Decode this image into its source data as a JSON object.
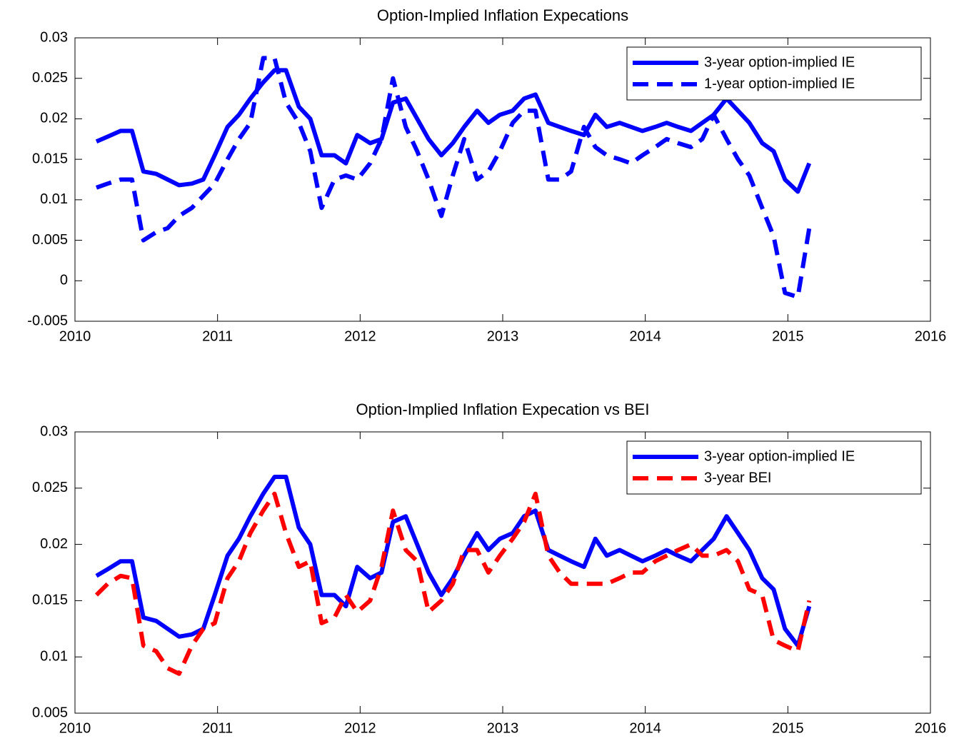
{
  "chart_data": [
    {
      "type": "line",
      "title": "Option-Implied Inflation Expecations",
      "x": [
        2010.15,
        2010.23,
        2010.32,
        2010.4,
        2010.48,
        2010.57,
        2010.65,
        2010.73,
        2010.82,
        2010.9,
        2010.98,
        2011.07,
        2011.15,
        2011.23,
        2011.32,
        2011.4,
        2011.48,
        2011.57,
        2011.65,
        2011.73,
        2011.82,
        2011.9,
        2011.98,
        2012.07,
        2012.15,
        2012.23,
        2012.32,
        2012.4,
        2012.48,
        2012.57,
        2012.65,
        2012.73,
        2012.82,
        2012.9,
        2012.98,
        2013.07,
        2013.15,
        2013.23,
        2013.32,
        2013.4,
        2013.48,
        2013.57,
        2013.65,
        2013.73,
        2013.82,
        2013.9,
        2013.98,
        2014.07,
        2014.15,
        2014.23,
        2014.32,
        2014.4,
        2014.48,
        2014.57,
        2014.65,
        2014.73,
        2014.82,
        2014.9,
        2014.98,
        2015.07,
        2015.15
      ],
      "series": [
        {
          "name": "3-year option-implied IE",
          "color": "#0000ff",
          "dash": "solid",
          "values": [
            0.0172,
            0.0178,
            0.0185,
            0.0185,
            0.0135,
            0.0132,
            0.0125,
            0.0118,
            0.012,
            0.0125,
            0.0155,
            0.019,
            0.0205,
            0.0225,
            0.0245,
            0.026,
            0.026,
            0.0215,
            0.02,
            0.0155,
            0.0155,
            0.0145,
            0.018,
            0.017,
            0.0175,
            0.022,
            0.0225,
            0.02,
            0.0175,
            0.0155,
            0.017,
            0.019,
            0.021,
            0.0195,
            0.0205,
            0.021,
            0.0225,
            0.023,
            0.0195,
            0.019,
            0.0185,
            0.018,
            0.0205,
            0.019,
            0.0195,
            0.019,
            0.0185,
            0.019,
            0.0195,
            0.019,
            0.0185,
            0.0195,
            0.0205,
            0.0225,
            0.021,
            0.0195,
            0.017,
            0.016,
            0.0125,
            0.011,
            0.0145
          ]
        },
        {
          "name": "1-year option-implied IE",
          "color": "#0000ff",
          "dash": "dashed",
          "values": [
            0.0115,
            0.012,
            0.0125,
            0.0125,
            0.005,
            0.006,
            0.0065,
            0.008,
            0.009,
            0.0105,
            0.012,
            0.015,
            0.0175,
            0.0195,
            0.0275,
            0.0275,
            0.022,
            0.0195,
            0.016,
            0.009,
            0.0125,
            0.013,
            0.0125,
            0.0145,
            0.0175,
            0.025,
            0.019,
            0.016,
            0.0125,
            0.008,
            0.013,
            0.0175,
            0.0125,
            0.0135,
            0.016,
            0.0195,
            0.021,
            0.021,
            0.0125,
            0.0125,
            0.0135,
            0.019,
            0.0165,
            0.0155,
            0.015,
            0.0145,
            0.0155,
            0.0165,
            0.0175,
            0.017,
            0.0165,
            0.0175,
            0.0205,
            0.0175,
            0.015,
            0.013,
            0.009,
            0.0055,
            -0.0015,
            -0.002,
            0.0065
          ]
        }
      ],
      "xlim": [
        2010,
        2016
      ],
      "ylim": [
        -0.005,
        0.03
      ],
      "xticks": [
        2010,
        2011,
        2012,
        2013,
        2014,
        2015,
        2016
      ],
      "yticks": [
        -0.005,
        0,
        0.005,
        0.01,
        0.015,
        0.02,
        0.025,
        0.03
      ],
      "legend": "northeast"
    },
    {
      "type": "line",
      "title": "Option-Implied Inflation Expecation vs BEI",
      "x": [
        2010.15,
        2010.23,
        2010.32,
        2010.4,
        2010.48,
        2010.57,
        2010.65,
        2010.73,
        2010.82,
        2010.9,
        2010.98,
        2011.07,
        2011.15,
        2011.23,
        2011.32,
        2011.4,
        2011.48,
        2011.57,
        2011.65,
        2011.73,
        2011.82,
        2011.9,
        2011.98,
        2012.07,
        2012.15,
        2012.23,
        2012.32,
        2012.4,
        2012.48,
        2012.57,
        2012.65,
        2012.73,
        2012.82,
        2012.9,
        2012.98,
        2013.07,
        2013.15,
        2013.23,
        2013.32,
        2013.4,
        2013.48,
        2013.57,
        2013.65,
        2013.73,
        2013.82,
        2013.9,
        2013.98,
        2014.07,
        2014.15,
        2014.23,
        2014.32,
        2014.4,
        2014.48,
        2014.57,
        2014.65,
        2014.73,
        2014.82,
        2014.9,
        2014.98,
        2015.07,
        2015.15
      ],
      "series": [
        {
          "name": "3-year option-implied IE",
          "color": "#0000ff",
          "dash": "solid",
          "values": [
            0.0172,
            0.0178,
            0.0185,
            0.0185,
            0.0135,
            0.0132,
            0.0125,
            0.0118,
            0.012,
            0.0125,
            0.0155,
            0.019,
            0.0205,
            0.0225,
            0.0245,
            0.026,
            0.026,
            0.0215,
            0.02,
            0.0155,
            0.0155,
            0.0145,
            0.018,
            0.017,
            0.0175,
            0.022,
            0.0225,
            0.02,
            0.0175,
            0.0155,
            0.017,
            0.019,
            0.021,
            0.0195,
            0.0205,
            0.021,
            0.0225,
            0.023,
            0.0195,
            0.019,
            0.0185,
            0.018,
            0.0205,
            0.019,
            0.0195,
            0.019,
            0.0185,
            0.019,
            0.0195,
            0.019,
            0.0185,
            0.0195,
            0.0205,
            0.0225,
            0.021,
            0.0195,
            0.017,
            0.016,
            0.0125,
            0.011,
            0.0145
          ]
        },
        {
          "name": "3-year BEI",
          "color": "#ff0000",
          "dash": "dashed",
          "values": [
            0.0155,
            0.0165,
            0.0172,
            0.017,
            0.011,
            0.0105,
            0.009,
            0.0085,
            0.011,
            0.0125,
            0.013,
            0.017,
            0.0185,
            0.021,
            0.023,
            0.0245,
            0.021,
            0.018,
            0.0185,
            0.013,
            0.0135,
            0.0155,
            0.014,
            0.015,
            0.018,
            0.023,
            0.0195,
            0.0185,
            0.014,
            0.015,
            0.0165,
            0.0195,
            0.0195,
            0.0175,
            0.019,
            0.0205,
            0.022,
            0.0245,
            0.019,
            0.0175,
            0.0165,
            0.0165,
            0.0165,
            0.0165,
            0.017,
            0.0175,
            0.0175,
            0.0185,
            0.019,
            0.0195,
            0.02,
            0.019,
            0.019,
            0.0195,
            0.0185,
            0.016,
            0.0155,
            0.0115,
            0.011,
            0.0105,
            0.015
          ]
        }
      ],
      "xlim": [
        2010,
        2016
      ],
      "ylim": [
        0.005,
        0.03
      ],
      "xticks": [
        2010,
        2011,
        2012,
        2013,
        2014,
        2015,
        2016
      ],
      "yticks": [
        0.005,
        0.01,
        0.015,
        0.02,
        0.025,
        0.03
      ],
      "legend": "northeast"
    }
  ]
}
